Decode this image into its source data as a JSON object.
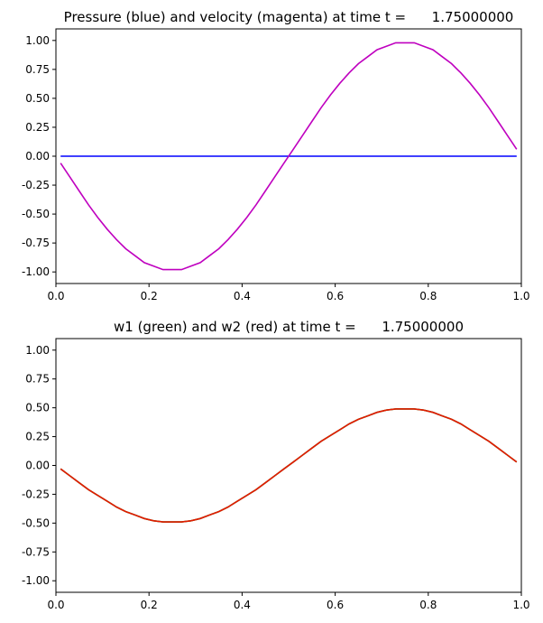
{
  "chart_data": [
    {
      "type": "line",
      "title": "Pressure (blue) and velocity (magenta) at time t =      1.75000000",
      "xlim": [
        0,
        1
      ],
      "ylim": [
        -1.1,
        1.1
      ],
      "grid": false,
      "xticks": [
        "0.0",
        "0.2",
        "0.4",
        "0.6",
        "0.8",
        "1.0"
      ],
      "yticks": [
        "-1.00",
        "-0.75",
        "-0.50",
        "-0.25",
        "0.00",
        "0.25",
        "0.50",
        "0.75",
        "1.00"
      ],
      "x": [
        0.01,
        0.03,
        0.05,
        0.07,
        0.09,
        0.11,
        0.13,
        0.15,
        0.17,
        0.19,
        0.21,
        0.23,
        0.25,
        0.27,
        0.29,
        0.31,
        0.33,
        0.35,
        0.37,
        0.39,
        0.41,
        0.43,
        0.45,
        0.47,
        0.49,
        0.51,
        0.53,
        0.55,
        0.57,
        0.59,
        0.61,
        0.63,
        0.65,
        0.67,
        0.69,
        0.71,
        0.73,
        0.75,
        0.77,
        0.79,
        0.81,
        0.83,
        0.85,
        0.87,
        0.89,
        0.91,
        0.93,
        0.95,
        0.97,
        0.99
      ],
      "series": [
        {
          "color": "#0000ff",
          "values": [
            0,
            0,
            0,
            0,
            0,
            0,
            0,
            0,
            0,
            0,
            0,
            0,
            0,
            0,
            0,
            0,
            0,
            0,
            0,
            0,
            0,
            0,
            0,
            0,
            0,
            0,
            0,
            0,
            0,
            0,
            0,
            0,
            0,
            0,
            0,
            0,
            0,
            0,
            0,
            0,
            0,
            0,
            0,
            0,
            0,
            0,
            0,
            0,
            0,
            0
          ]
        },
        {
          "color": "#bf00bf",
          "values": [
            -0.06,
            -0.18,
            -0.3,
            -0.42,
            -0.53,
            -0.63,
            -0.72,
            -0.8,
            -0.86,
            -0.92,
            -0.95,
            -0.98,
            -0.98,
            -0.98,
            -0.95,
            -0.92,
            -0.86,
            -0.8,
            -0.72,
            -0.63,
            -0.53,
            -0.42,
            -0.3,
            -0.18,
            -0.06,
            0.06,
            0.18,
            0.3,
            0.42,
            0.53,
            0.63,
            0.72,
            0.8,
            0.86,
            0.92,
            0.95,
            0.98,
            0.98,
            0.98,
            0.95,
            0.92,
            0.86,
            0.8,
            0.72,
            0.63,
            0.53,
            0.42,
            0.3,
            0.18,
            0.06
          ]
        }
      ]
    },
    {
      "type": "line",
      "title": "w1 (green) and w2 (red) at time t =      1.75000000",
      "xlim": [
        0,
        1
      ],
      "ylim": [
        -1.1,
        1.1
      ],
      "grid": false,
      "xticks": [
        "0.0",
        "0.2",
        "0.4",
        "0.6",
        "0.8",
        "1.0"
      ],
      "yticks": [
        "-1.00",
        "-0.75",
        "-0.50",
        "-0.25",
        "0.00",
        "0.25",
        "0.50",
        "0.75",
        "1.00"
      ],
      "x": [
        0.01,
        0.03,
        0.05,
        0.07,
        0.09,
        0.11,
        0.13,
        0.15,
        0.17,
        0.19,
        0.21,
        0.23,
        0.25,
        0.27,
        0.29,
        0.31,
        0.33,
        0.35,
        0.37,
        0.39,
        0.41,
        0.43,
        0.45,
        0.47,
        0.49,
        0.51,
        0.53,
        0.55,
        0.57,
        0.59,
        0.61,
        0.63,
        0.65,
        0.67,
        0.69,
        0.71,
        0.73,
        0.75,
        0.77,
        0.79,
        0.81,
        0.83,
        0.85,
        0.87,
        0.89,
        0.91,
        0.93,
        0.95,
        0.97,
        0.99
      ],
      "series": [
        {
          "color": "#008000",
          "values": [
            -0.03,
            -0.09,
            -0.15,
            -0.21,
            -0.26,
            -0.31,
            -0.36,
            -0.4,
            -0.43,
            -0.46,
            -0.48,
            -0.49,
            -0.49,
            -0.49,
            -0.48,
            -0.46,
            -0.43,
            -0.4,
            -0.36,
            -0.31,
            -0.26,
            -0.21,
            -0.15,
            -0.09,
            -0.03,
            0.03,
            0.09,
            0.15,
            0.21,
            0.26,
            0.31,
            0.36,
            0.4,
            0.43,
            0.46,
            0.48,
            0.49,
            0.49,
            0.49,
            0.48,
            0.46,
            0.43,
            0.4,
            0.36,
            0.31,
            0.26,
            0.21,
            0.15,
            0.09,
            0.03
          ]
        },
        {
          "color": "#e41a00",
          "values": [
            -0.03,
            -0.09,
            -0.15,
            -0.21,
            -0.26,
            -0.31,
            -0.36,
            -0.4,
            -0.43,
            -0.46,
            -0.48,
            -0.49,
            -0.49,
            -0.49,
            -0.48,
            -0.46,
            -0.43,
            -0.4,
            -0.36,
            -0.31,
            -0.26,
            -0.21,
            -0.15,
            -0.09,
            -0.03,
            0.03,
            0.09,
            0.15,
            0.21,
            0.26,
            0.31,
            0.36,
            0.4,
            0.43,
            0.46,
            0.48,
            0.49,
            0.49,
            0.49,
            0.48,
            0.46,
            0.43,
            0.4,
            0.36,
            0.31,
            0.26,
            0.21,
            0.15,
            0.09,
            0.03
          ]
        }
      ]
    }
  ]
}
